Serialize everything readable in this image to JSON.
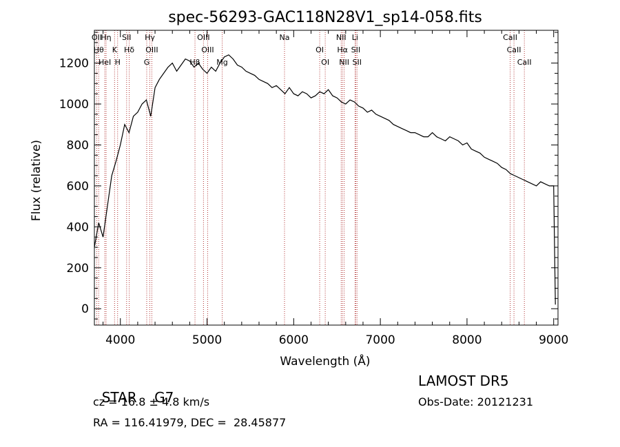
{
  "chart_data": {
    "type": "line",
    "title": "spec-56293-GAC118N28V1_sp14-058.fits",
    "xlabel": "Wavelength (Å)",
    "ylabel": "Flux (relative)",
    "xlim": [
      3700,
      9050
    ],
    "ylim": [
      -80,
      1360
    ],
    "xticks": [
      4000,
      5000,
      6000,
      7000,
      8000,
      9000
    ],
    "yticks": [
      0,
      200,
      400,
      600,
      800,
      1000,
      1200
    ],
    "grid": false,
    "series": [
      {
        "x": [
          3700,
          3750,
          3800,
          3850,
          3900,
          3950,
          4000,
          4050,
          4100,
          4150,
          4200,
          4250,
          4300,
          4350,
          4400,
          4450,
          4500,
          4550,
          4600,
          4650,
          4700,
          4750,
          4800,
          4850,
          4900,
          4950,
          5000,
          5050,
          5100,
          5150,
          5200,
          5250,
          5300,
          5350,
          5400,
          5450,
          5500,
          5550,
          5600,
          5650,
          5700,
          5750,
          5800,
          5850,
          5900,
          5950,
          6000,
          6050,
          6100,
          6150,
          6200,
          6250,
          6300,
          6350,
          6400,
          6450,
          6500,
          6550,
          6600,
          6650,
          6700,
          6750,
          6800,
          6850,
          6900,
          6950,
          7000,
          7050,
          7100,
          7150,
          7200,
          7250,
          7300,
          7350,
          7400,
          7450,
          7500,
          7550,
          7600,
          7650,
          7700,
          7750,
          7800,
          7850,
          7900,
          7950,
          8000,
          8050,
          8100,
          8150,
          8200,
          8250,
          8300,
          8350,
          8400,
          8450,
          8500,
          8550,
          8600,
          8650,
          8700,
          8750,
          8800,
          8850,
          8900,
          8950,
          9000,
          9020
        ],
        "y": [
          300,
          420,
          350,
          500,
          650,
          720,
          800,
          900,
          860,
          940,
          960,
          1000,
          1020,
          940,
          1080,
          1120,
          1150,
          1180,
          1200,
          1160,
          1190,
          1220,
          1210,
          1180,
          1200,
          1170,
          1150,
          1180,
          1160,
          1200,
          1230,
          1240,
          1220,
          1190,
          1180,
          1160,
          1150,
          1140,
          1120,
          1110,
          1100,
          1080,
          1090,
          1070,
          1050,
          1080,
          1050,
          1040,
          1060,
          1050,
          1030,
          1040,
          1060,
          1050,
          1070,
          1040,
          1030,
          1010,
          1000,
          1020,
          1010,
          990,
          980,
          960,
          970,
          950,
          940,
          930,
          920,
          900,
          890,
          880,
          870,
          860,
          860,
          850,
          840,
          840,
          860,
          840,
          830,
          820,
          840,
          830,
          820,
          800,
          810,
          780,
          770,
          760,
          740,
          730,
          720,
          710,
          690,
          680,
          660,
          650,
          640,
          630,
          620,
          610,
          600,
          620,
          610,
          600,
          600,
          20
        ]
      }
    ],
    "spectral_lines": [
      {
        "x": 3727,
        "label": "OII"
      },
      {
        "x": 3750,
        "label": "Hθ"
      },
      {
        "x": 3820,
        "label": "HeI"
      },
      {
        "x": 3835,
        "label": "Hη"
      },
      {
        "x": 3933,
        "label": "K"
      },
      {
        "x": 3968,
        "label": "H"
      },
      {
        "x": 4072,
        "label": "SII"
      },
      {
        "x": 4102,
        "label": "Hδ"
      },
      {
        "x": 4304,
        "label": "G"
      },
      {
        "x": 4340,
        "label": "Hγ"
      },
      {
        "x": 4363,
        "label": "OIII"
      },
      {
        "x": 4861,
        "label": "Hβ"
      },
      {
        "x": 4959,
        "label": "OIII"
      },
      {
        "x": 5007,
        "label": "OIII"
      },
      {
        "x": 5175,
        "label": "Mg"
      },
      {
        "x": 5894,
        "label": "Na"
      },
      {
        "x": 6300,
        "label": "OI"
      },
      {
        "x": 6364,
        "label": "OI"
      },
      {
        "x": 6548,
        "label": "NII"
      },
      {
        "x": 6563,
        "label": "Hα"
      },
      {
        "x": 6583,
        "label": "NII"
      },
      {
        "x": 6708,
        "label": "Li"
      },
      {
        "x": 6716,
        "label": "SII"
      },
      {
        "x": 6731,
        "label": "SII"
      },
      {
        "x": 8498,
        "label": "CaII"
      },
      {
        "x": 8542,
        "label": "CaII"
      },
      {
        "x": 8662,
        "label": "CaII"
      }
    ]
  },
  "info": {
    "class": "STAR",
    "subclass": "G7",
    "survey": "LAMOST DR5",
    "cz": "cz = 16.8 ± 4.8 km/s",
    "obs_date": "Obs-Date: 20121231",
    "coords": "RA = 116.41979, DEC =  28.45877"
  },
  "colors": {
    "line_marker": "#b03030",
    "spectrum": "#000000"
  }
}
